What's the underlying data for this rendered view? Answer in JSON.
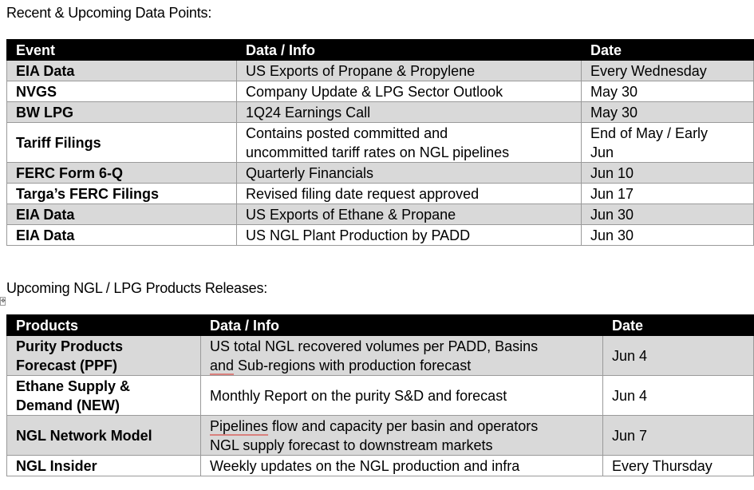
{
  "section1": {
    "title": "Recent & Upcoming Data Points:",
    "headers": [
      "Event",
      "Data / Info",
      "Date"
    ],
    "rows": [
      {
        "event": "EIA Data",
        "info": [
          "US Exports of Propane & Propylene"
        ],
        "date": [
          "Every Wednesday"
        ]
      },
      {
        "event": "NVGS",
        "info": [
          "Company Update & LPG Sector Outlook"
        ],
        "date": [
          "May 30"
        ]
      },
      {
        "event": "BW LPG",
        "info": [
          "1Q24 Earnings Call"
        ],
        "date": [
          "May 30"
        ]
      },
      {
        "event": "Tariff Filings",
        "info": [
          "Contains posted committed and",
          "uncommitted tariff rates on NGL pipelines"
        ],
        "date": [
          "End of May / Early",
          "Jun"
        ]
      },
      {
        "event": "FERC Form 6-Q",
        "info": [
          "Quarterly Financials"
        ],
        "date": [
          "Jun 10"
        ]
      },
      {
        "event": "Targa’s FERC Filings",
        "info": [
          "Revised filing date request approved"
        ],
        "date": [
          "Jun 17"
        ]
      },
      {
        "event": "EIA Data",
        "info": [
          "US Exports of Ethane & Propane"
        ],
        "date": [
          "Jun 30"
        ]
      },
      {
        "event": "EIA Data",
        "info": [
          "US NGL Plant Production by PADD"
        ],
        "date": [
          "Jun 30"
        ]
      }
    ]
  },
  "section2": {
    "title": "Upcoming NGL / LPG Products Releases:",
    "headers": [
      "Products",
      "Data / Info",
      "Date"
    ],
    "rows": [
      {
        "product": [
          "Purity Products",
          "Forecast (PPF)"
        ],
        "info_l1": "US total NGL recovered volumes per PADD, Basins",
        "info_l2_a": "and",
        "info_l2_b": " Sub-regions with production forecast",
        "date": "Jun 4"
      },
      {
        "product": [
          "Ethane Supply &",
          "Demand (NEW)"
        ],
        "info": "Monthly Report on the purity S&D and forecast",
        "date": "Jun 4"
      },
      {
        "product": [
          "NGL Network Model"
        ],
        "info_l1_a": "Pipelines",
        "info_l1_b": " flow and capacity per basin and operators",
        "info_l2": "NGL supply forecast to downstream markets",
        "date": "Jun 7"
      },
      {
        "product": [
          "NGL Insider"
        ],
        "info": "Weekly updates on the NGL production and infra",
        "date": "Every Thursday"
      }
    ]
  },
  "table_anchor_glyph": "✥"
}
